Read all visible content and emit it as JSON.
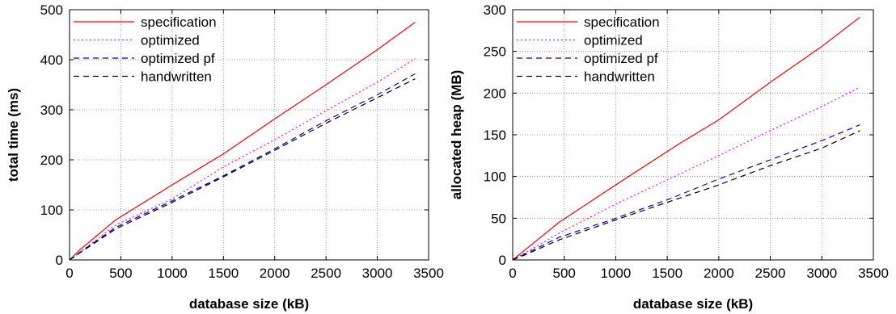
{
  "chart_data": [
    {
      "type": "line",
      "xlabel": "database size (kB)",
      "ylabel": "total time (ms)",
      "xlim": [
        0,
        3500
      ],
      "ylim": [
        0,
        500
      ],
      "xticks": [
        "0",
        "500",
        "1000",
        "1500",
        "2000",
        "2500",
        "3000",
        "3500"
      ],
      "yticks": [
        "0",
        "100",
        "200",
        "300",
        "400",
        "500"
      ],
      "grid": true,
      "legend": "top-left",
      "series": [
        {
          "name": "specification",
          "color": "#ff0000",
          "dash": "solid",
          "x": [
            0,
            100,
            450,
            1000,
            1500,
            2000,
            2500,
            3000,
            3370
          ],
          "y": [
            0,
            20,
            80,
            150,
            212,
            282,
            350,
            420,
            475
          ]
        },
        {
          "name": "optimized",
          "color": "#ff00ff",
          "dash": "dotted",
          "x": [
            0,
            100,
            450,
            1000,
            1500,
            2000,
            2500,
            3000,
            3370
          ],
          "y": [
            0,
            15,
            70,
            122,
            186,
            240,
            298,
            355,
            402
          ]
        },
        {
          "name": "optimized pf",
          "color": "#0000cc",
          "dash": "dashed",
          "x": [
            0,
            100,
            450,
            1000,
            1500,
            2000,
            2500,
            3000,
            3370
          ],
          "y": [
            0,
            15,
            65,
            118,
            168,
            222,
            278,
            330,
            372
          ]
        },
        {
          "name": "handwritten",
          "color": "#000000",
          "dash": "dashed",
          "x": [
            0,
            100,
            450,
            1000,
            1500,
            2000,
            2500,
            3000,
            3370
          ],
          "y": [
            0,
            14,
            62,
            115,
            166,
            219,
            273,
            324,
            362
          ]
        }
      ]
    },
    {
      "type": "line",
      "xlabel": "database size (kB)",
      "ylabel": "allocated heap (MB)",
      "xlim": [
        0,
        3500
      ],
      "ylim": [
        0,
        300
      ],
      "xticks": [
        "0",
        "500",
        "1000",
        "1500",
        "2000",
        "2500",
        "3000",
        "3500"
      ],
      "yticks": [
        "0",
        "50",
        "100",
        "150",
        "200",
        "250",
        "300"
      ],
      "grid": true,
      "legend": "top-left",
      "series": [
        {
          "name": "specification",
          "color": "#ff0000",
          "dash": "solid",
          "x": [
            0,
            100,
            450,
            1000,
            1600,
            2000,
            2500,
            3000,
            3370
          ],
          "y": [
            0,
            10,
            45,
            90,
            138,
            168,
            213,
            256,
            291
          ]
        },
        {
          "name": "optimized",
          "color": "#ff00ff",
          "dash": "dotted",
          "x": [
            0,
            100,
            450,
            1000,
            1500,
            2000,
            2500,
            3000,
            3370
          ],
          "y": [
            0,
            7,
            32,
            67,
            96,
            125,
            155,
            184,
            207
          ]
        },
        {
          "name": "optimized pf",
          "color": "#0000cc",
          "dash": "dashed",
          "x": [
            0,
            100,
            450,
            1000,
            1500,
            2000,
            2500,
            3000,
            3370
          ],
          "y": [
            0,
            6,
            27,
            50,
            72,
            97,
            120,
            143,
            162
          ]
        },
        {
          "name": "handwritten",
          "color": "#000000",
          "dash": "dashed",
          "x": [
            0,
            100,
            450,
            1000,
            1500,
            2000,
            2500,
            3000,
            3370
          ],
          "y": [
            0,
            5,
            24,
            48,
            69,
            90,
            113,
            134,
            155
          ]
        }
      ]
    }
  ]
}
